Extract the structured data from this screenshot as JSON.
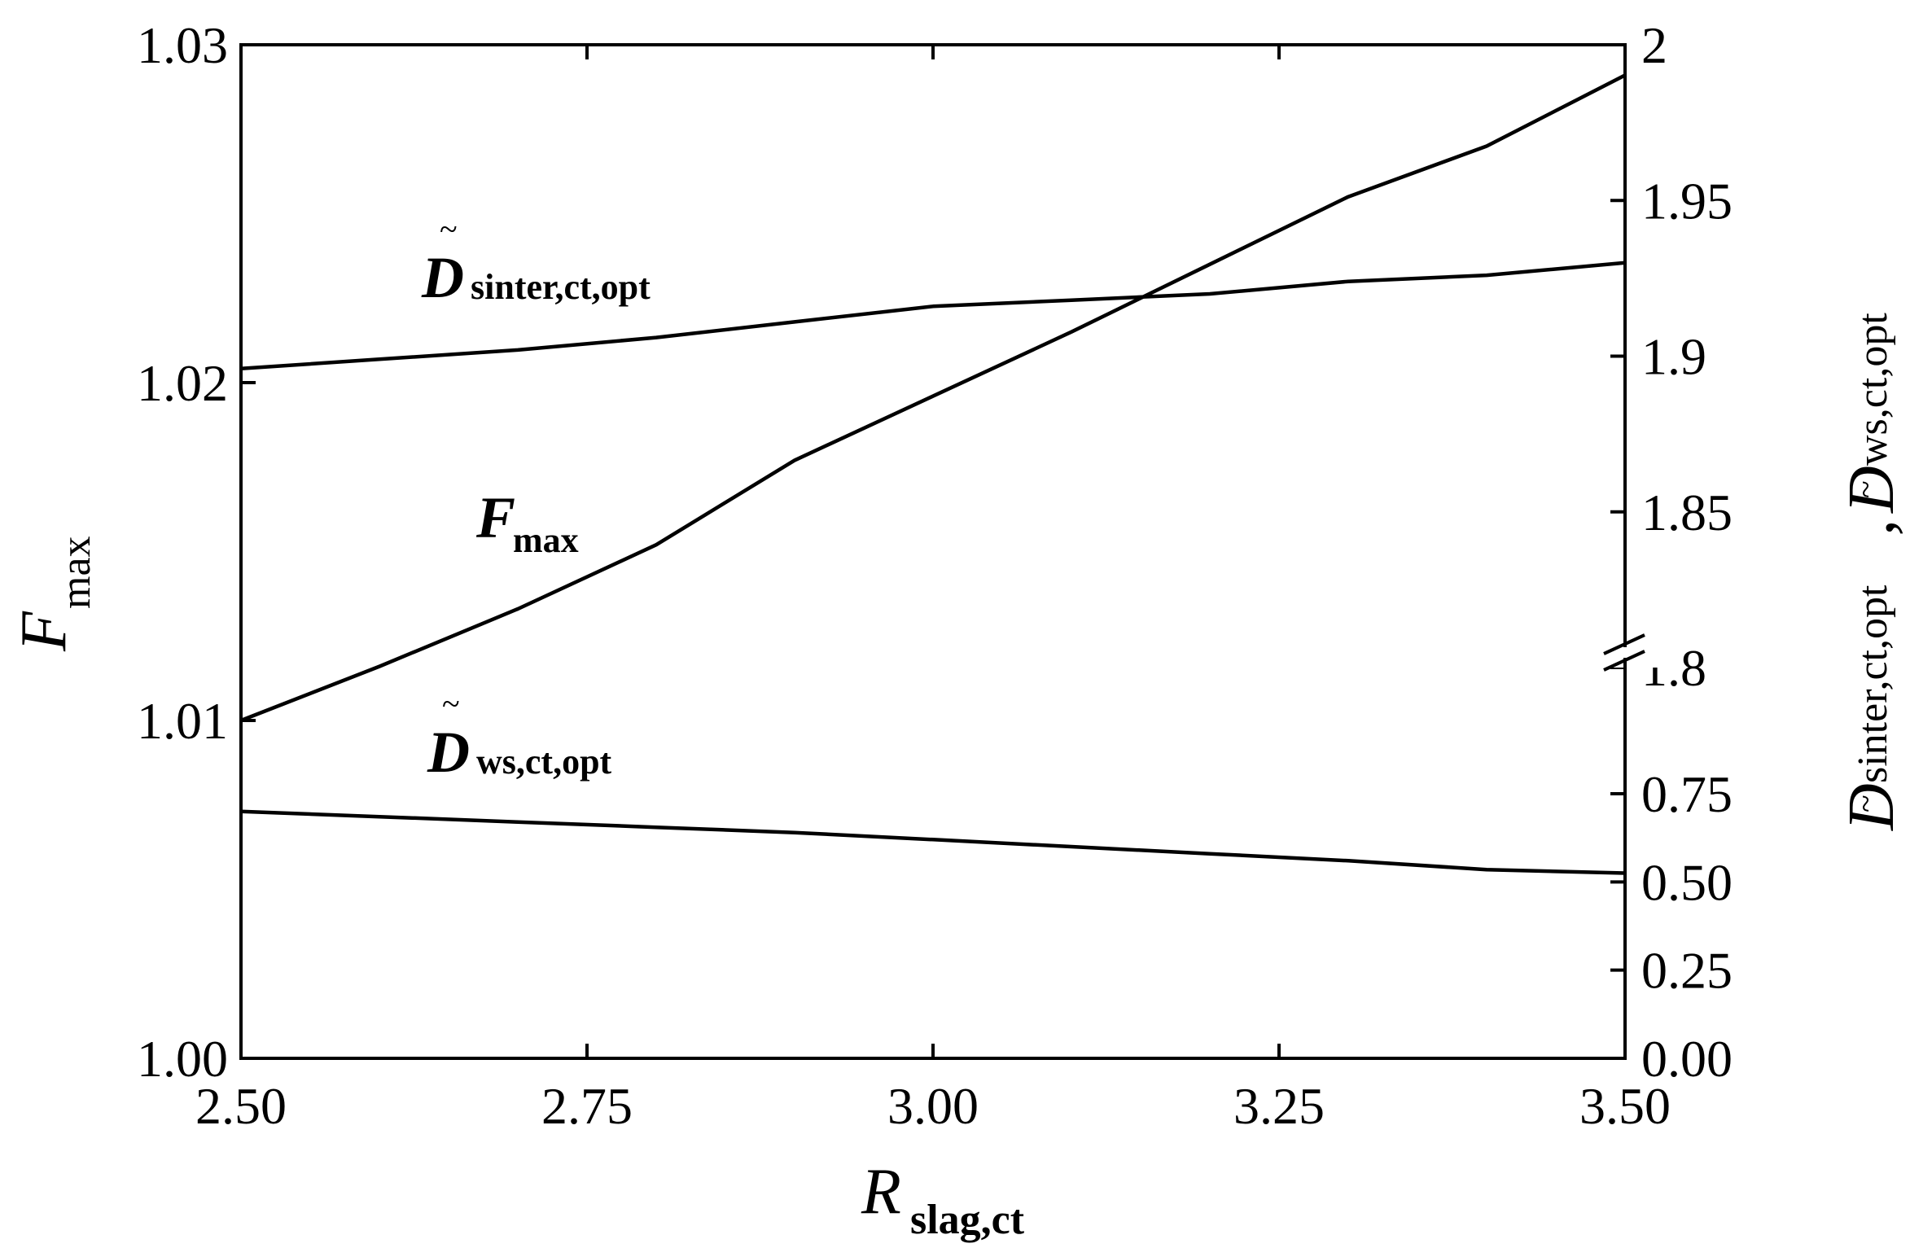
{
  "chart_data": {
    "type": "line",
    "x": [
      2.5,
      2.6,
      2.7,
      2.8,
      2.9,
      3.0,
      3.1,
      3.2,
      3.3,
      3.4,
      3.5
    ],
    "xlabel": {
      "main": "R",
      "sub": "slag,ct"
    },
    "xlim": [
      2.5,
      3.5
    ],
    "xticks": [
      "2.50",
      "2.75",
      "3.00",
      "3.25",
      "3.50"
    ],
    "ylabel_left": {
      "main": "F",
      "sub": "max"
    },
    "ylim_left": [
      1.0,
      1.03
    ],
    "yticks_left": [
      "1.00",
      "1.01",
      "1.02",
      "1.03"
    ],
    "ylabel_right": {
      "tilde": "~",
      "main1": "D",
      "sub1": "sinter,ct,opt",
      "sep": ",",
      "main2": "D",
      "sub2": "ws,ct,opt"
    },
    "axis_break": true,
    "ylim_right_lower": [
      0.0,
      0.75
    ],
    "ylim_right_upper": [
      1.8,
      2.0
    ],
    "yticks_right_lower": [
      "0.00",
      "0.25",
      "0.50",
      "0.75"
    ],
    "yticks_right_upper": [
      "1.8",
      "1.85",
      "1.9",
      "1.95",
      "2"
    ],
    "grid": false,
    "series": [
      {
        "axis": "left",
        "label_main": "F",
        "label_sub": "max",
        "values": [
          1.01,
          1.0116,
          1.0133,
          1.0152,
          1.0177,
          1.0196,
          1.0215,
          1.0235,
          1.0255,
          1.027,
          1.0291
        ]
      },
      {
        "axis": "right-upper",
        "label_tilde": "~",
        "label_main": "D",
        "label_sub": "sinter,ct,opt",
        "values": [
          1.896,
          1.899,
          1.902,
          1.906,
          1.911,
          1.916,
          1.918,
          1.92,
          1.924,
          1.926,
          1.93
        ]
      },
      {
        "axis": "right-lower",
        "label_tilde": "~",
        "label_main": "D",
        "label_sub": "ws,ct,opt",
        "values": [
          0.7,
          0.685,
          0.67,
          0.655,
          0.64,
          0.62,
          0.6,
          0.58,
          0.56,
          0.535,
          0.525
        ]
      }
    ]
  }
}
